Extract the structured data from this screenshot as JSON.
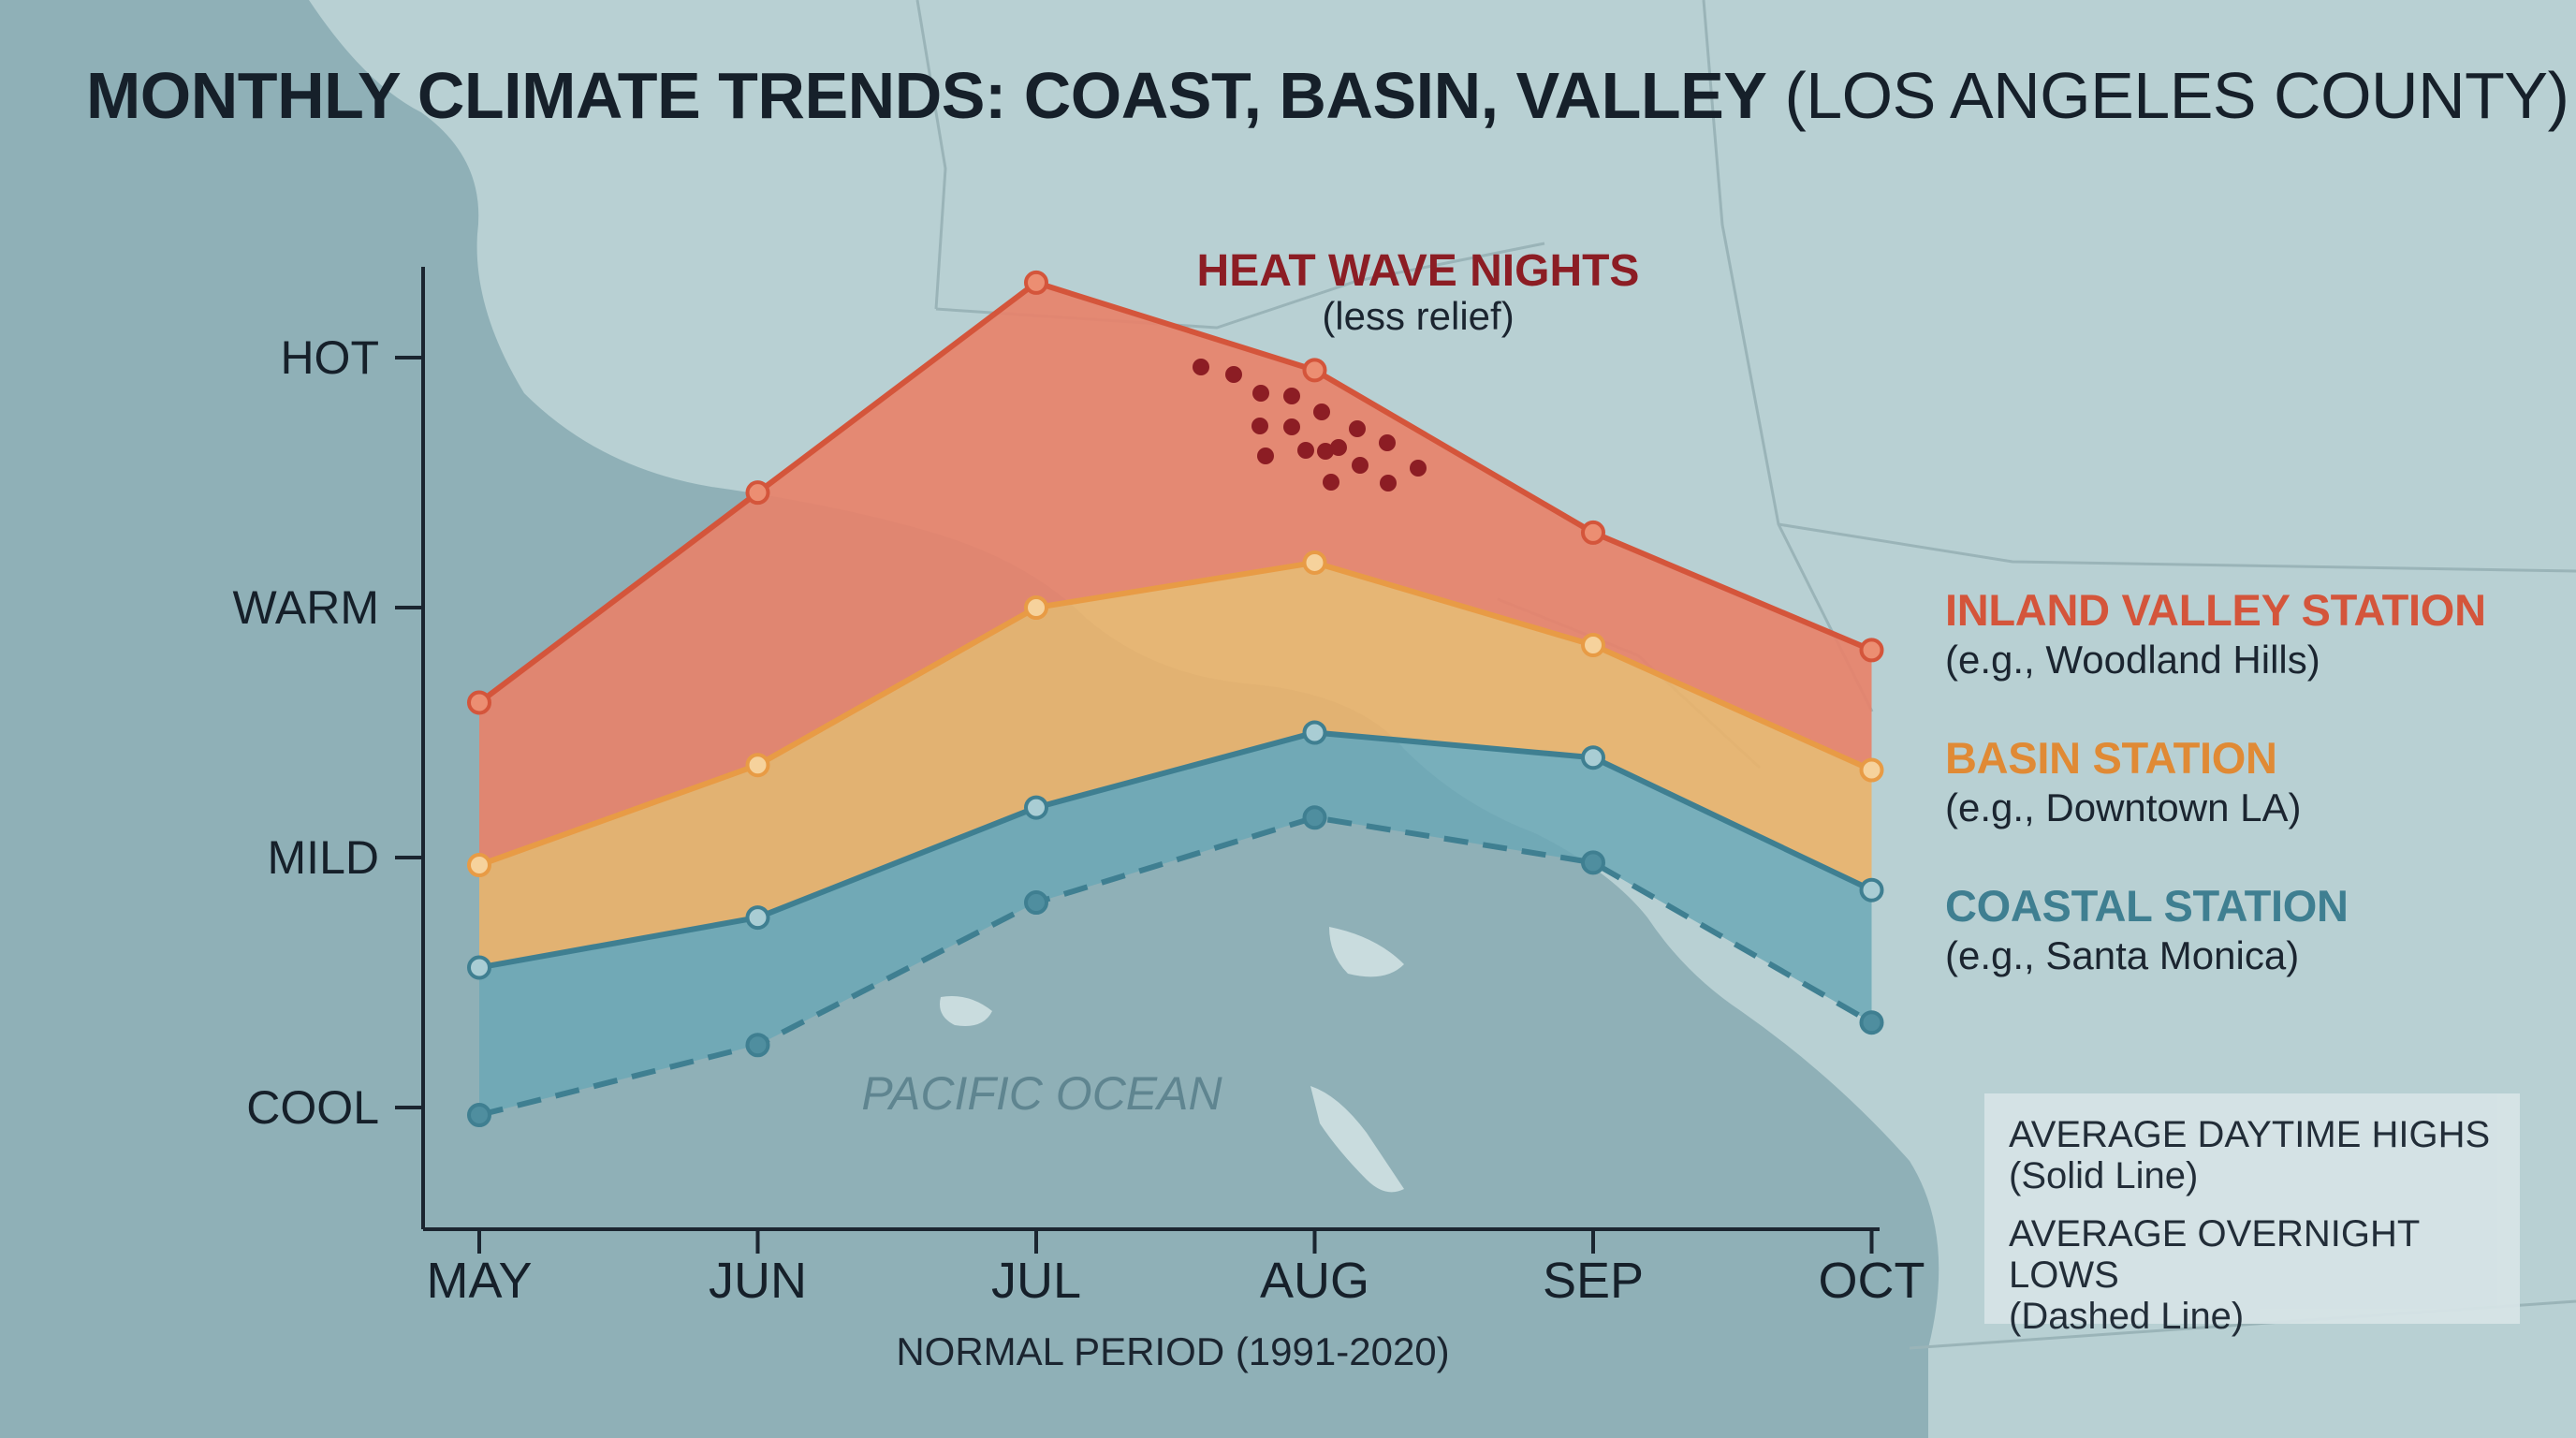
{
  "title": {
    "main": "MONTHLY CLIMATE TRENDS: COAST, BASIN, VALLEY",
    "sub": "(LOS ANGELES COUNTY)"
  },
  "colors": {
    "inland": "#d4553b",
    "inland_fill": "#e7826a",
    "basin": "#e89b45",
    "basin_fill": "#ebb26a",
    "coastal": "#3f7f91",
    "coastal_fill": "#6aa7b6",
    "heat_dots": "#8c1d24",
    "ocean": "#8fb0b7",
    "land": "#b8d0d3"
  },
  "annotation": {
    "title": "HEAT WAVE NIGHTS",
    "sub": "(less relief)"
  },
  "map_label": "PACIFIC OCEAN",
  "stations": {
    "inland": {
      "name": "INLAND VALLEY STATION",
      "example": "(e.g., Woodland Hills)"
    },
    "basin": {
      "name": "BASIN STATION",
      "example": "(e.g., Downtown LA)"
    },
    "coastal": {
      "name": "COASTAL STATION",
      "example": "(e.g., Santa Monica)"
    }
  },
  "legend": {
    "highs": "AVERAGE DAYTIME HIGHS",
    "highs_style": "(Solid Line)",
    "lows": "AVERAGE OVERNIGHT LOWS",
    "lows_style": "(Dashed Line)"
  },
  "chart_data": {
    "type": "area",
    "title": "MONTHLY CLIMATE TRENDS: COAST, BASIN, VALLEY (LOS ANGELES COUNTY)",
    "xlabel": "NORMAL PERIOD (1991-2020)",
    "ylabel": "",
    "categories": [
      "MAY",
      "JUN",
      "JUL",
      "AUG",
      "SEP",
      "OCT"
    ],
    "y_scale": "qualitative, COOL = 0 to HOT = 3",
    "y_ticks": [
      "COOL",
      "MILD",
      "WARM",
      "HOT"
    ],
    "ylim": [
      -0.5,
      3.4
    ],
    "grid": false,
    "series": [
      {
        "name": "INLAND VALLEY STATION",
        "line": "solid",
        "values": [
          1.62,
          2.46,
          3.3,
          2.95,
          2.3,
          1.83
        ]
      },
      {
        "name": "BASIN STATION",
        "line": "solid",
        "values": [
          0.97,
          1.37,
          2.0,
          2.18,
          1.85,
          1.35
        ]
      },
      {
        "name": "COASTAL STATION",
        "line": "solid",
        "values": [
          0.56,
          0.76,
          1.2,
          1.5,
          1.4,
          0.87
        ]
      },
      {
        "line": "dashed",
        "values": [
          -0.03,
          0.25,
          0.82,
          1.16,
          0.98,
          0.34
        ]
      }
    ]
  }
}
